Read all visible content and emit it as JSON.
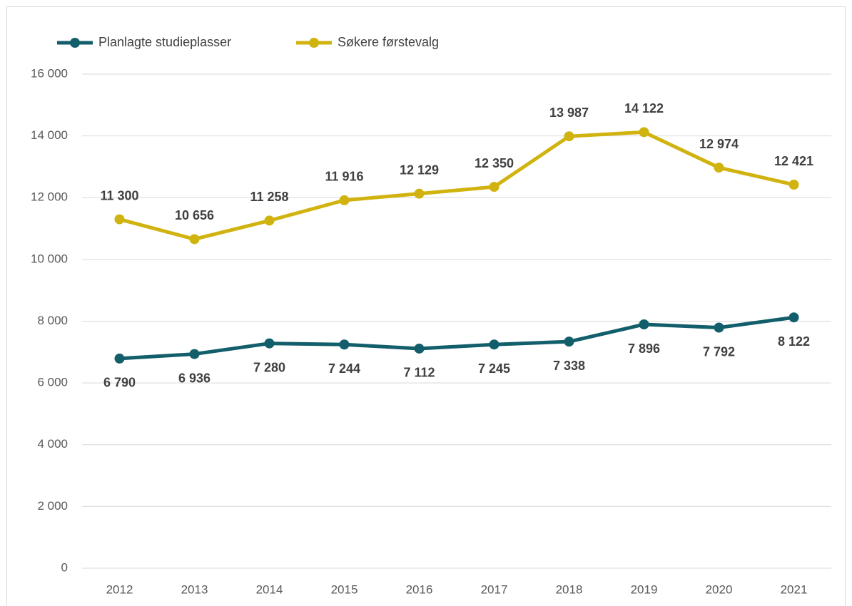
{
  "chart_data": {
    "type": "line",
    "categories": [
      "2012",
      "2013",
      "2014",
      "2015",
      "2016",
      "2017",
      "2018",
      "2019",
      "2020",
      "2021"
    ],
    "series": [
      {
        "name": "Planlagte studieplasser",
        "color": "#125e6a",
        "values": [
          6790,
          6936,
          7280,
          7244,
          7112,
          7245,
          7338,
          7896,
          7792,
          8122
        ],
        "value_labels": [
          "6 790",
          "6 936",
          "7 280",
          "7 244",
          "7 112",
          "7 245",
          "7 338",
          "7 896",
          "7 792",
          "8 122"
        ]
      },
      {
        "name": "Søkere førstevalg",
        "color": "#d1b30f",
        "values": [
          11300,
          10656,
          11258,
          11916,
          12129,
          12350,
          13987,
          14122,
          12974,
          12421
        ],
        "value_labels": [
          "11 300",
          "10 656",
          "11 258",
          "11 916",
          "12 129",
          "12 350",
          "13 987",
          "14 122",
          "12 974",
          "12 421"
        ]
      }
    ],
    "ylim": [
      0,
      16000
    ],
    "yticks": [
      0,
      {
        "value": 2000,
        "label": "2 000"
      },
      {
        "value": 4000,
        "label": "4 000"
      },
      {
        "value": 6000,
        "label": "6 000"
      },
      {
        "value": 8000,
        "label": "8 000"
      },
      {
        "value": 10000,
        "label": "10 000"
      },
      {
        "value": 12000,
        "label": "12 000"
      },
      {
        "value": 14000,
        "label": "14 000"
      },
      {
        "value": 16000,
        "label": "16 000"
      }
    ],
    "grid": true
  }
}
